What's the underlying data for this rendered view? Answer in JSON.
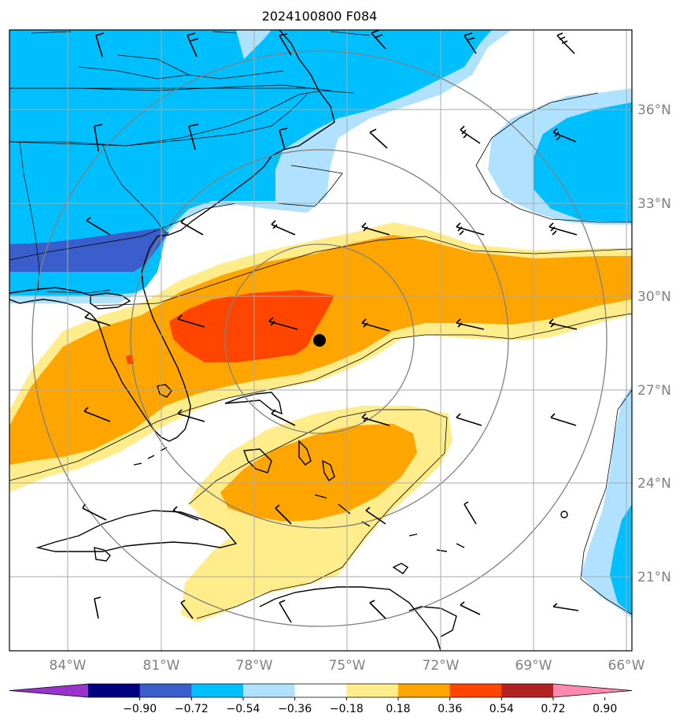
{
  "title": "2024100800 F084",
  "lon_ticks": [
    "84°W",
    "81°W",
    "78°W",
    "75°W",
    "72°W",
    "69°W",
    "66°W"
  ],
  "lat_ticks": [
    "36°N",
    "33°N",
    "30°N",
    "27°N",
    "24°N",
    "21°N"
  ],
  "colorbar": {
    "labels": [
      "−0.90",
      "−0.72",
      "−0.54",
      "−0.36",
      "−0.18",
      "0.18",
      "0.36",
      "0.54",
      "0.72",
      "0.90"
    ],
    "colors": [
      "#9933cc",
      "#000080",
      "#3a5fcd",
      "#00bfff",
      "#b0e2ff",
      "#ffffff",
      "#ffec8b",
      "#ffa500",
      "#ff4500",
      "#b22222",
      "#ff88b0"
    ]
  },
  "colors": {
    "very_light_blue": "#b0e2ff",
    "light_blue": "#00bfff",
    "mid_blue": "#3a5fcd",
    "light_yellow": "#ffec8b",
    "orange": "#ffa500",
    "red_orange": "#ff4500",
    "grid": "#a9a9a9",
    "range_rings": "#808080"
  },
  "center_marker": {
    "symbol": "filled-circle",
    "lon": -75.8,
    "lat": 28.6
  }
}
